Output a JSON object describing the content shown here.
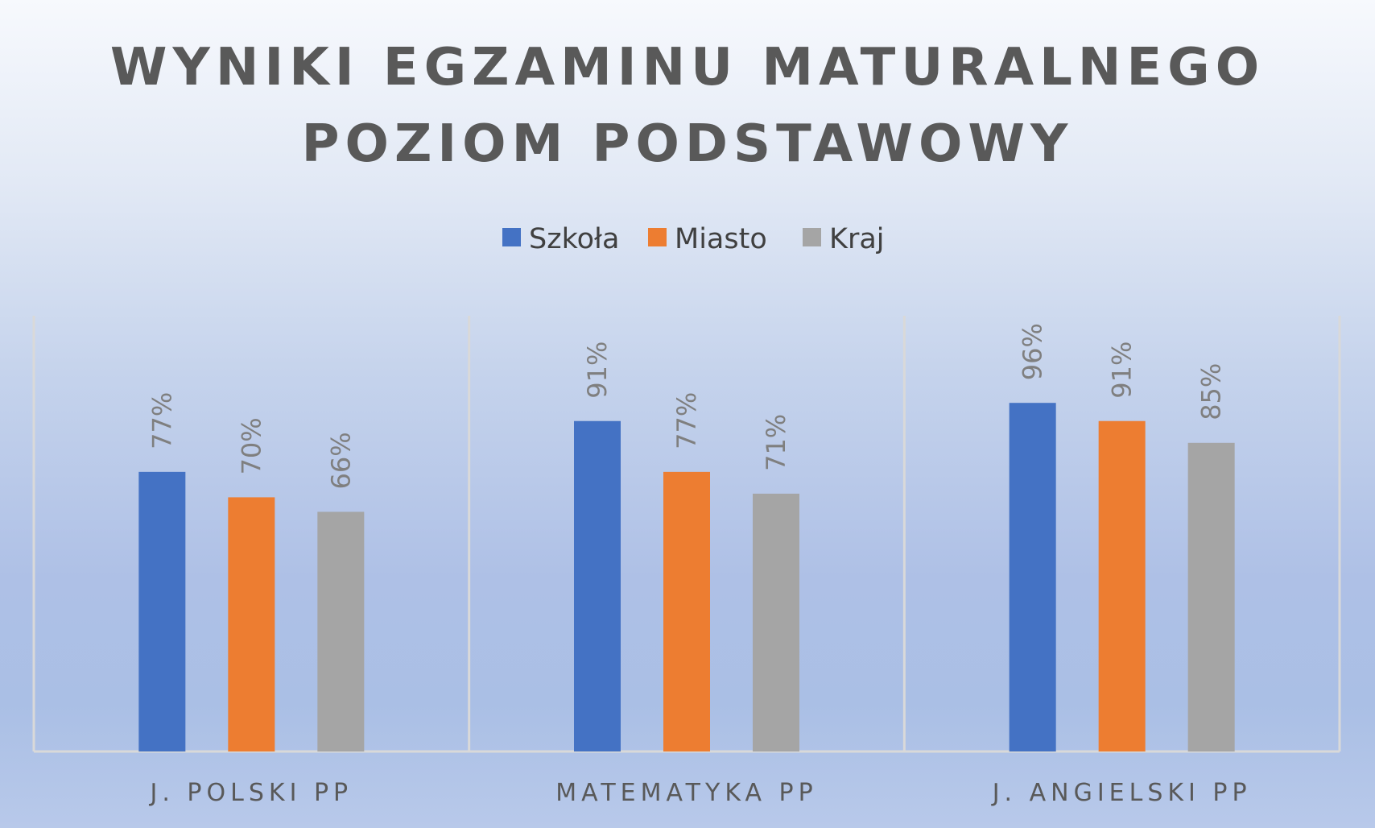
{
  "chart_data": {
    "type": "bar",
    "title_lines": [
      "WYNIKI EGZAMINU MATURALNEGO",
      "POZIOM PODSTAWOWY"
    ],
    "categories": [
      "J. POLSKI PP",
      "MATEMATYKA PP",
      "J. ANGIELSKI PP"
    ],
    "series": [
      {
        "name": "Szkoła",
        "color": "#4472c4",
        "values": [
          77,
          91,
          96
        ],
        "labels": [
          "77%",
          "91%",
          "96%"
        ]
      },
      {
        "name": "Miasto",
        "color": "#ed7d31",
        "values": [
          70,
          77,
          91
        ],
        "labels": [
          "70%",
          "77%",
          "91%"
        ]
      },
      {
        "name": "Kraj",
        "color": "#a5a5a5",
        "values": [
          66,
          71,
          85
        ],
        "labels": [
          "66%",
          "71%",
          "85%"
        ]
      }
    ],
    "legend": "top",
    "grid": false,
    "ylim": [
      0,
      120
    ]
  }
}
